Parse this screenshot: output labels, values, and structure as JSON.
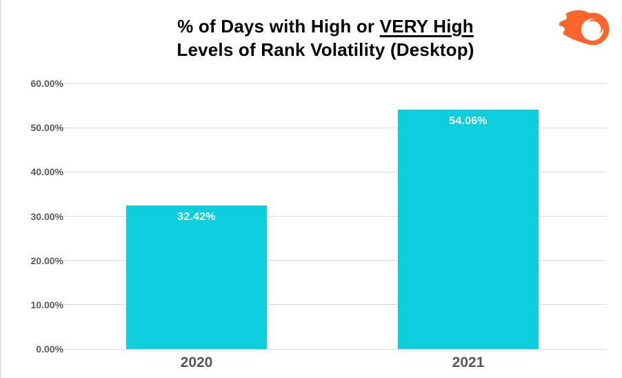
{
  "colors": {
    "bar": "#0dcedd",
    "accent_orange": "#ff642d",
    "grid": "#d9d9d9",
    "axis_text": "#58595b",
    "title_text": "#000000",
    "value_label_text": "#ffffff"
  },
  "logo": {
    "icon": "semrush-fireball-icon"
  },
  "chart_data": {
    "type": "bar",
    "title": "% of Days with High or VERY High Levels of Rank Volatility (Desktop)",
    "title_line1_prefix": "% of Days with High or ",
    "title_line1_underlined": "VERY High",
    "title_line2": "Levels of Rank Volatility (Desktop)",
    "categories": [
      "2020",
      "2021"
    ],
    "values": [
      32.42,
      54.06
    ],
    "value_labels": [
      "32.42%",
      "54.06%"
    ],
    "xlabel": "",
    "ylabel": "",
    "ylim": [
      0,
      60
    ],
    "y_ticks": [
      {
        "value": 60,
        "label": "60.00%"
      },
      {
        "value": 50,
        "label": "50.00%"
      },
      {
        "value": 40,
        "label": "40.00%"
      },
      {
        "value": 30,
        "label": "30.00%"
      },
      {
        "value": 20,
        "label": "20.00%"
      },
      {
        "value": 10,
        "label": "10.00%"
      },
      {
        "value": 0,
        "label": "0.00%"
      }
    ],
    "grid": "horizontal",
    "legend": "none"
  }
}
